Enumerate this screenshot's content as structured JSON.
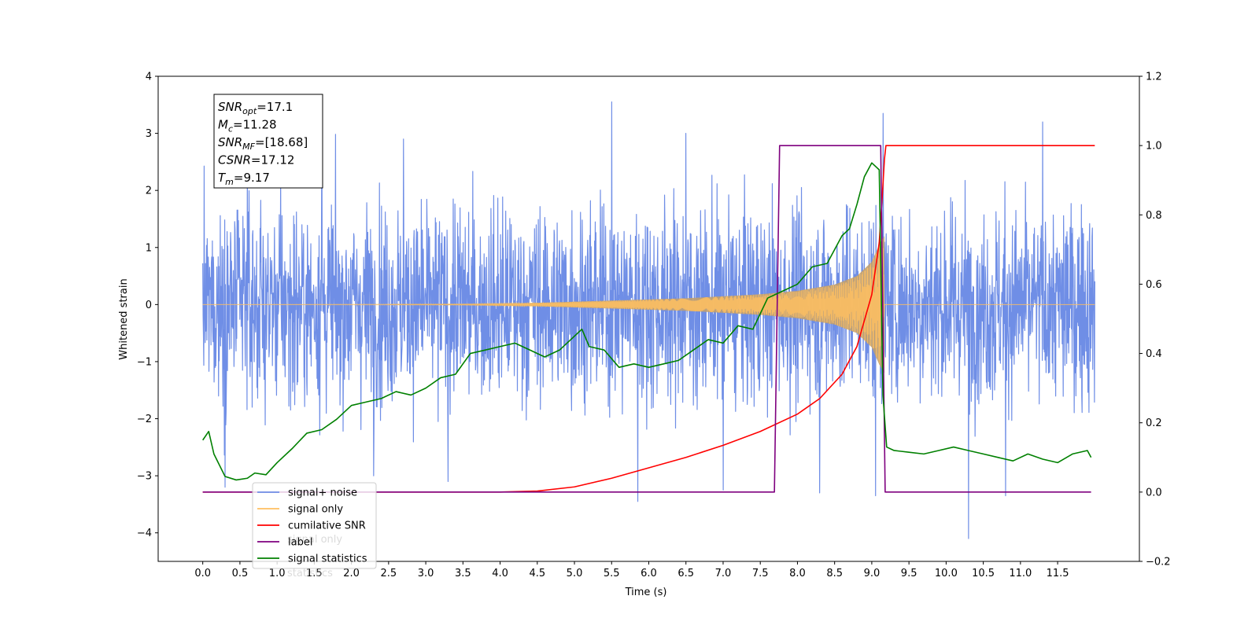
{
  "chart_data": {
    "type": "line",
    "title": "",
    "xlabel": "Time (s)",
    "ylabel": "Whitened strain",
    "xlim": [
      -0.6,
      12.6
    ],
    "ylim_left": [
      -4.5,
      4.0
    ],
    "ylim_right": [
      -0.2,
      1.2
    ],
    "x_ticks": [
      0.0,
      0.5,
      1.0,
      1.5,
      2.0,
      2.5,
      3.0,
      3.5,
      4.0,
      4.5,
      5.0,
      5.5,
      6.0,
      6.5,
      7.0,
      7.5,
      8.0,
      8.5,
      9.0,
      9.5,
      10.0,
      10.5,
      11.0,
      11.5
    ],
    "x_tick_labels": [
      "0.0",
      "0.5",
      "1.0",
      "1.5",
      "2.0",
      "2.5",
      "3.0",
      "3.5",
      "4.0",
      "4.5",
      "5.0",
      "5.5",
      "6.0",
      "6.5",
      "7.0",
      "7.5",
      "8.0",
      "8.5",
      "9.0",
      "9.5",
      "10.0",
      "10.5",
      "11.0",
      "11.5"
    ],
    "y_left_ticks": [
      -4,
      -3,
      -2,
      -1,
      0,
      1,
      2,
      3,
      4
    ],
    "y_left_tick_labels": [
      "−4",
      "−3",
      "−2",
      "−1",
      "0",
      "1",
      "2",
      "3",
      "4"
    ],
    "y_right_ticks": [
      -0.2,
      0.0,
      0.2,
      0.4,
      0.6,
      0.8,
      1.0,
      1.2
    ],
    "y_right_tick_labels": [
      "−0.2",
      "0.0",
      "0.2",
      "0.4",
      "0.6",
      "0.8",
      "1.0",
      "1.2"
    ],
    "grid": false,
    "legend_position": "lower-left",
    "legend": [
      {
        "label": "signal+ noise",
        "color": "#6f8ee6"
      },
      {
        "label": "signal only",
        "color": "#ffbf60"
      },
      {
        "label": "cumilative SNR",
        "color": "#ff0000"
      },
      {
        "label": "label",
        "color": "#7f007f"
      },
      {
        "label": "signal statistics",
        "color": "#008000"
      }
    ],
    "legend_ghost_text": [
      "signal only",
      "statistics"
    ],
    "stats_box": [
      {
        "sym": "SNR",
        "sub": "opt",
        "val": "=17.1"
      },
      {
        "sym": "M",
        "sub": "c",
        "val": "=11.28"
      },
      {
        "sym": "SNR",
        "sub": "MF",
        "val": "=[18.68]"
      },
      {
        "sym": "CSNR",
        "sub": "",
        "val": "=17.12"
      },
      {
        "sym": "T",
        "sub": "m",
        "val": "=9.17"
      }
    ],
    "series": [
      {
        "name": "signal+ noise",
        "axis": "left",
        "color": "#6f8ee6",
        "t_start": 0.0,
        "t_end": 12.0,
        "sigma": 0.85,
        "spikes": [
          [
            1.6,
            3.6
          ],
          [
            5.5,
            3.55
          ],
          [
            9.15,
            3.35
          ],
          [
            11.3,
            3.2
          ],
          [
            5.85,
            -3.45
          ],
          [
            10.3,
            -4.1
          ],
          [
            0.3,
            -3.2
          ],
          [
            2.3,
            -3.0
          ],
          [
            9.05,
            -3.35
          ],
          [
            7.0,
            -3.25
          ],
          [
            10.8,
            -3.35
          ],
          [
            3.3,
            -3.1
          ],
          [
            0.6,
            3.0
          ],
          [
            8.3,
            -3.3
          ],
          [
            6.5,
            3.0
          ],
          [
            2.7,
            2.9
          ]
        ]
      },
      {
        "name": "signal only",
        "axis": "left",
        "color": "#ffbf60",
        "t_merger": 9.17,
        "amplitude": [
          [
            0.0,
            0.0
          ],
          [
            3.5,
            0.01
          ],
          [
            4.5,
            0.03
          ],
          [
            5.5,
            0.07
          ],
          [
            6.5,
            0.11
          ],
          [
            7.5,
            0.18
          ],
          [
            8.0,
            0.24
          ],
          [
            8.5,
            0.35
          ],
          [
            8.8,
            0.5
          ],
          [
            9.0,
            0.75
          ],
          [
            9.1,
            1.05
          ],
          [
            9.17,
            1.2
          ],
          [
            9.2,
            0.0
          ],
          [
            12.0,
            0.0
          ]
        ]
      },
      {
        "name": "cumilative SNR",
        "axis": "right",
        "color": "#ff0000",
        "x": [
          0.0,
          3.0,
          4.0,
          4.5,
          5.0,
          5.5,
          6.0,
          6.5,
          7.0,
          7.5,
          8.0,
          8.3,
          8.6,
          8.8,
          9.0,
          9.1,
          9.14,
          9.17,
          9.19,
          12.0
        ],
        "y": [
          0.0,
          0.0,
          0.0,
          0.003,
          0.015,
          0.04,
          0.07,
          0.1,
          0.135,
          0.175,
          0.225,
          0.27,
          0.34,
          0.42,
          0.57,
          0.72,
          0.85,
          0.96,
          1.0,
          1.0
        ]
      },
      {
        "name": "label",
        "axis": "right",
        "color": "#7f007f",
        "x": [
          0.0,
          7.69,
          7.76,
          9.12,
          9.18,
          11.95
        ],
        "y": [
          0.0,
          0.0,
          1.0,
          1.0,
          0.0,
          0.0
        ]
      },
      {
        "name": "signal statistics",
        "axis": "right",
        "color": "#008000",
        "x": [
          0.0,
          0.08,
          0.15,
          0.3,
          0.45,
          0.6,
          0.7,
          0.85,
          1.0,
          1.2,
          1.4,
          1.6,
          1.8,
          2.0,
          2.2,
          2.4,
          2.6,
          2.8,
          3.0,
          3.2,
          3.4,
          3.6,
          3.8,
          4.0,
          4.2,
          4.4,
          4.6,
          4.8,
          5.0,
          5.1,
          5.2,
          5.4,
          5.6,
          5.8,
          6.0,
          6.2,
          6.4,
          6.6,
          6.8,
          7.0,
          7.2,
          7.4,
          7.6,
          7.8,
          8.0,
          8.2,
          8.4,
          8.5,
          8.6,
          8.7,
          8.8,
          8.9,
          9.0,
          9.05,
          9.1,
          9.15,
          9.2,
          9.3,
          9.5,
          9.7,
          9.9,
          10.1,
          10.3,
          10.5,
          10.7,
          10.9,
          11.1,
          11.3,
          11.5,
          11.7,
          11.9,
          11.95
        ],
        "y": [
          0.15,
          0.175,
          0.11,
          0.045,
          0.035,
          0.04,
          0.055,
          0.05,
          0.085,
          0.125,
          0.17,
          0.18,
          0.21,
          0.25,
          0.26,
          0.27,
          0.29,
          0.28,
          0.3,
          0.33,
          0.34,
          0.4,
          0.41,
          0.42,
          0.43,
          0.41,
          0.39,
          0.41,
          0.45,
          0.47,
          0.42,
          0.41,
          0.36,
          0.37,
          0.36,
          0.37,
          0.38,
          0.41,
          0.44,
          0.43,
          0.48,
          0.47,
          0.56,
          0.58,
          0.6,
          0.65,
          0.66,
          0.7,
          0.74,
          0.76,
          0.83,
          0.91,
          0.95,
          0.94,
          0.93,
          0.28,
          0.13,
          0.12,
          0.115,
          0.11,
          0.12,
          0.13,
          0.12,
          0.11,
          0.1,
          0.09,
          0.11,
          0.095,
          0.085,
          0.11,
          0.12,
          0.1
        ]
      }
    ]
  }
}
